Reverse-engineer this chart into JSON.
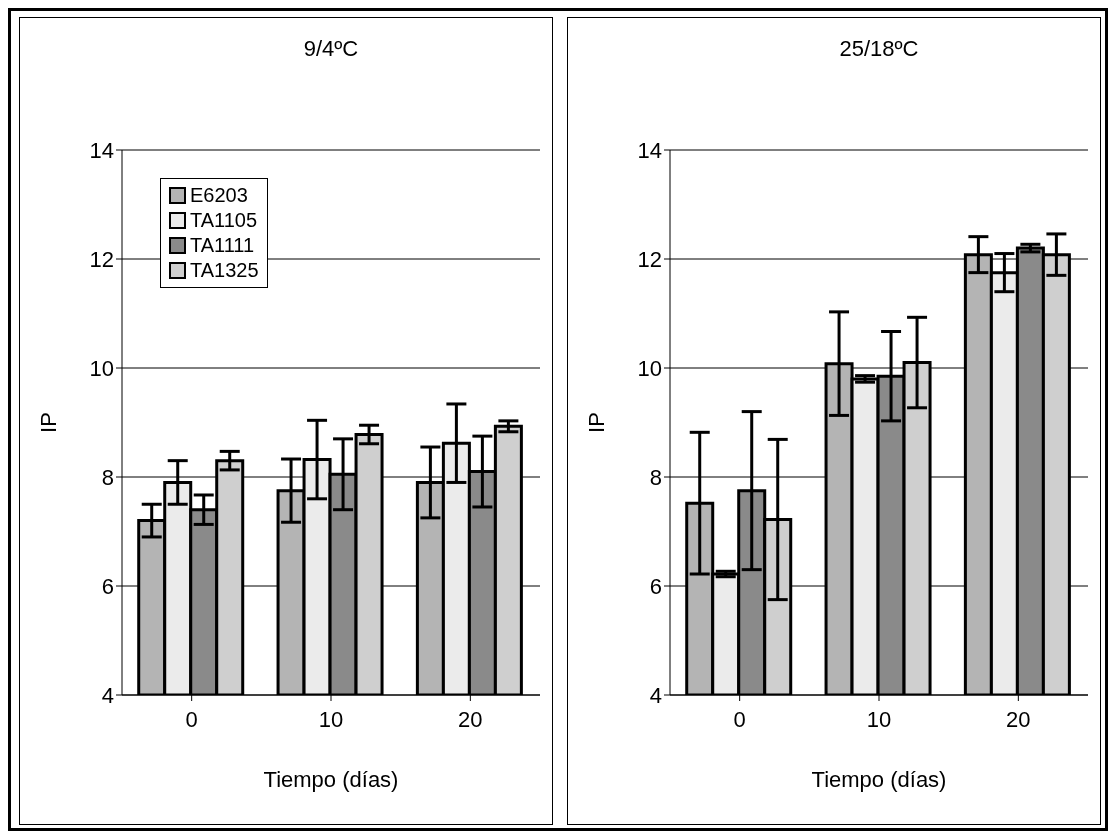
{
  "chart_data": [
    {
      "type": "bar",
      "title": "9/4ºC",
      "xlabel": "Tiempo (días)",
      "ylabel": "IP",
      "categories": [
        "0",
        "10",
        "20"
      ],
      "ylim": [
        4,
        14
      ],
      "yticks": [
        4,
        6,
        8,
        10,
        12,
        14
      ],
      "grid": "y",
      "legend": "top left",
      "series": [
        {
          "name": "E6203",
          "color": "#b4b4b4",
          "values": [
            7.2,
            7.75,
            7.9
          ],
          "errors": [
            0.3,
            0.58,
            0.65
          ]
        },
        {
          "name": "TA1105",
          "color": "#ebebeb",
          "values": [
            7.9,
            8.32,
            8.62
          ],
          "errors": [
            0.4,
            0.72,
            0.72
          ]
        },
        {
          "name": "TA1111",
          "color": "#8a8a8a",
          "values": [
            7.4,
            8.05,
            8.1
          ],
          "errors": [
            0.27,
            0.65,
            0.65
          ]
        },
        {
          "name": "TA1325",
          "color": "#cfcfcf",
          "values": [
            8.3,
            8.78,
            8.93
          ],
          "errors": [
            0.17,
            0.17,
            0.1
          ]
        }
      ]
    },
    {
      "type": "bar",
      "title": "25/18ºC",
      "xlabel": "Tiempo (días)",
      "ylabel": "IP",
      "categories": [
        "0",
        "10",
        "20"
      ],
      "ylim": [
        4,
        14
      ],
      "yticks": [
        4,
        6,
        8,
        10,
        12,
        14
      ],
      "grid": "y",
      "series": [
        {
          "color": "#b4b4b4",
          "values": [
            7.52,
            10.08,
            12.08
          ],
          "errors": [
            1.3,
            0.95,
            0.33
          ]
        },
        {
          "color": "#ebebeb",
          "values": [
            6.22,
            9.8,
            11.75
          ],
          "errors": [
            0.05,
            0.06,
            0.35
          ]
        },
        {
          "color": "#8a8a8a",
          "values": [
            7.75,
            9.85,
            12.2
          ],
          "errors": [
            1.45,
            0.82,
            0.07
          ]
        },
        {
          "color": "#cfcfcf",
          "values": [
            7.22,
            10.1,
            12.08
          ],
          "errors": [
            1.47,
            0.83,
            0.38
          ]
        }
      ]
    }
  ]
}
